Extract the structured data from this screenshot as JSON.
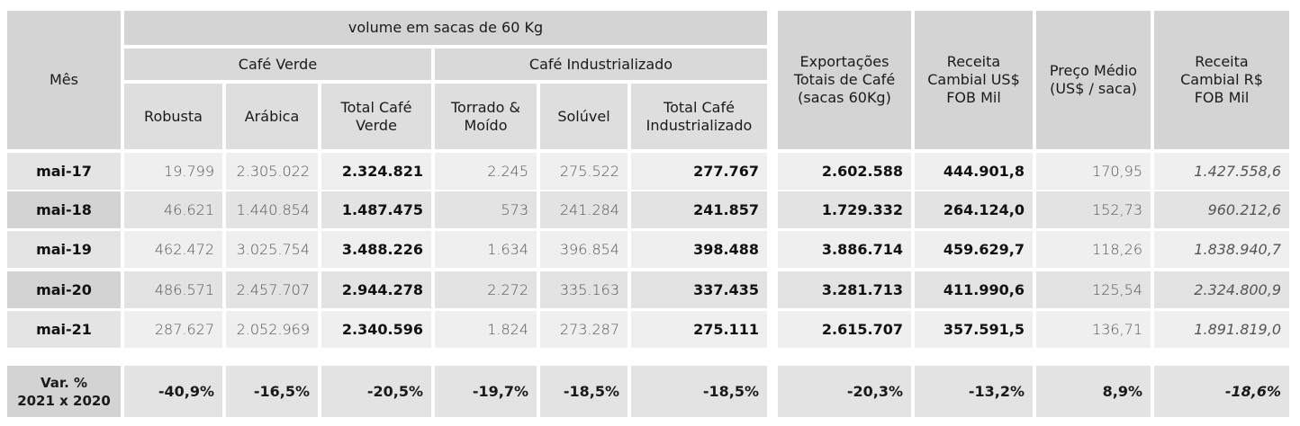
{
  "header": {
    "mes": "Mês",
    "volume": "volume em sacas de 60 Kg",
    "cafe_verde": "Café Verde",
    "cafe_industrializado": "Café Industrializado",
    "robusta": "Robusta",
    "arabica": "Arábica",
    "total_verde": "Total Café Verde",
    "torrado": "Torrado & Moído",
    "soluvel": "Solúvel",
    "total_ind": "Total Café Industrializado",
    "exportacoes": "Exportações Totais de Café (sacas 60Kg)",
    "receita_usd": "Receita Cambial US$ FOB Mil",
    "preco": "Preço Médio (US$ / saca)",
    "receita_brl": "Receita Cambial R$ FOB Mil"
  },
  "rows": [
    {
      "mes": "mai-17",
      "robusta": "19.799",
      "arabica": "2.305.022",
      "total_verde": "2.324.821",
      "torrado": "2.245",
      "soluvel": "275.522",
      "total_ind": "277.767",
      "exportacoes": "2.602.588",
      "receita_usd": "444.901,8",
      "preco": "170,95",
      "receita_brl": "1.427.558,6"
    },
    {
      "mes": "mai-18",
      "robusta": "46.621",
      "arabica": "1.440.854",
      "total_verde": "1.487.475",
      "torrado": "573",
      "soluvel": "241.284",
      "total_ind": "241.857",
      "exportacoes": "1.729.332",
      "receita_usd": "264.124,0",
      "preco": "152,73",
      "receita_brl": "960.212,6"
    },
    {
      "mes": "mai-19",
      "robusta": "462.472",
      "arabica": "3.025.754",
      "total_verde": "3.488.226",
      "torrado": "1.634",
      "soluvel": "396.854",
      "total_ind": "398.488",
      "exportacoes": "3.886.714",
      "receita_usd": "459.629,7",
      "preco": "118,26",
      "receita_brl": "1.838.940,7"
    },
    {
      "mes": "mai-20",
      "robusta": "486.571",
      "arabica": "2.457.707",
      "total_verde": "2.944.278",
      "torrado": "2.272",
      "soluvel": "335.163",
      "total_ind": "337.435",
      "exportacoes": "3.281.713",
      "receita_usd": "411.990,6",
      "preco": "125,54",
      "receita_brl": "2.324.800,9"
    },
    {
      "mes": "mai-21",
      "robusta": "287.627",
      "arabica": "2.052.969",
      "total_verde": "2.340.596",
      "torrado": "1.824",
      "soluvel": "273.287",
      "total_ind": "275.111",
      "exportacoes": "2.615.707",
      "receita_usd": "357.591,5",
      "preco": "136,71",
      "receita_brl": "1.891.819,0"
    }
  ],
  "variation": {
    "label_line1": "Var. %",
    "label_line2": "2021 x 2020",
    "robusta": "-40,9%",
    "arabica": "-16,5%",
    "total_verde": "-20,5%",
    "torrado": "-19,7%",
    "soluvel": "-18,5%",
    "total_ind": "-18,5%",
    "exportacoes": "-20,3%",
    "receita_usd": "-13,2%",
    "preco": "8,9%",
    "receita_brl": "-18,6%"
  }
}
